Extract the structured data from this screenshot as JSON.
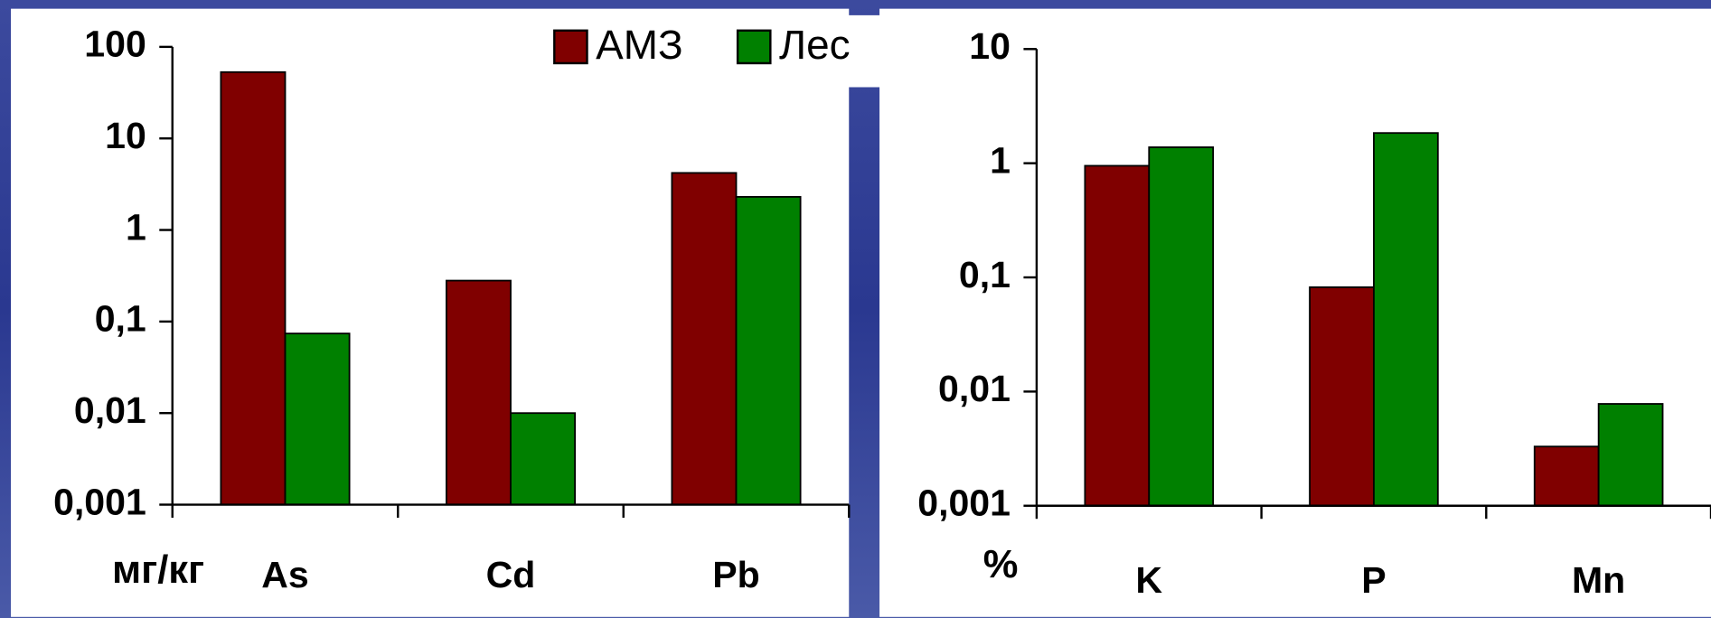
{
  "chart_data": [
    {
      "type": "bar",
      "log_scale": true,
      "grid": false,
      "ylabel": "мг/кг",
      "categories": [
        "As",
        "Cd",
        "Pb"
      ],
      "series": [
        {
          "name": "АМЗ",
          "color": "#800000",
          "values": [
            53,
            0.28,
            4.2
          ]
        },
        {
          "name": "Лес",
          "color": "#008000",
          "values": [
            0.074,
            0.01,
            2.3
          ]
        }
      ],
      "ylim": [
        0.001,
        100
      ],
      "yticks": [
        {
          "value": 0.001,
          "label": "0,001"
        },
        {
          "value": 0.01,
          "label": "0,01"
        },
        {
          "value": 0.1,
          "label": "0,1"
        },
        1,
        10,
        100
      ]
    },
    {
      "type": "bar",
      "log_scale": true,
      "grid": false,
      "ylabel": "%",
      "categories": [
        "K",
        "P",
        "Mn"
      ],
      "series": [
        {
          "color": "#800000",
          "values": [
            0.95,
            0.082,
            0.0033
          ]
        },
        {
          "color": "#008000",
          "values": [
            1.38,
            1.84,
            0.0078
          ]
        }
      ],
      "ylim": [
        0.001,
        10
      ],
      "yticks": [
        {
          "value": 0.001,
          "label": "0,001"
        },
        {
          "value": 0.01,
          "label": "0,01"
        },
        {
          "value": 0.1,
          "label": "0,1"
        },
        1,
        10
      ]
    }
  ]
}
